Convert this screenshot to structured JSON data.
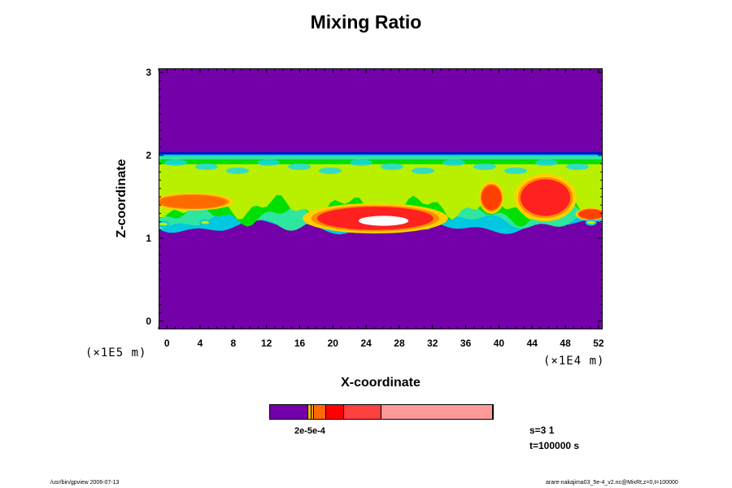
{
  "chart_data": {
    "type": "heatmap",
    "title": "Mixing Ratio",
    "xlabel": "X-coordinate",
    "ylabel": "Z-coordinate",
    "x_scale_label": "(×1E4 m)",
    "y_scale_label": "(×1E5 m)",
    "xlim": [
      -1,
      52.5
    ],
    "ylim": [
      -0.1,
      3.05
    ],
    "x_ticks": [
      "0",
      "4",
      "8",
      "12",
      "16",
      "20",
      "24",
      "28",
      "32",
      "36",
      "40",
      "44",
      "48",
      "52"
    ],
    "y_ticks": [
      "0",
      "1",
      "2",
      "3"
    ],
    "background_color": "#7300a8",
    "layer": {
      "z_bottom": 1.15,
      "z_top": 2.02
    },
    "colorbar": {
      "segments": [
        {
          "color": "#7300a8",
          "frac": 0.17
        },
        {
          "color": "#f2c000",
          "frac": 0.01
        },
        {
          "color": "#ff9a00",
          "frac": 0.01
        },
        {
          "color": "#ff6a00",
          "frac": 0.05
        },
        {
          "color": "#ff0000",
          "frac": 0.08
        },
        {
          "color": "#ff4040",
          "frac": 0.165
        },
        {
          "color": "#ff9a9a",
          "frac": 0.505
        }
      ],
      "label": "2e-5e-4"
    },
    "hot_spots": [
      {
        "x": 25,
        "z": 1.25,
        "rx": 7,
        "rz": 0.14,
        "color": "#ff2020"
      },
      {
        "x": 26,
        "z": 1.22,
        "rx": 3,
        "rz": 0.06,
        "color": "#ffffff"
      },
      {
        "x": 45.5,
        "z": 1.5,
        "rx": 3,
        "rz": 0.22,
        "color": "#ff2020"
      },
      {
        "x": 39,
        "z": 1.5,
        "rx": 1.2,
        "rz": 0.15,
        "color": "#ff4000"
      },
      {
        "x": 3,
        "z": 1.45,
        "rx": 4,
        "rz": 0.08,
        "color": "#ff6a00"
      },
      {
        "x": 51,
        "z": 1.3,
        "rx": 1.5,
        "rz": 0.06,
        "color": "#ff4000"
      }
    ]
  },
  "info": {
    "s": "s=3 1",
    "t": "t=100000 s"
  },
  "footer": {
    "left": "/usr/bin/gpview 2006-07-13",
    "right": "arare-nakajima03_5e-4_v2.nc@MixRt,z=0,t=100000"
  }
}
